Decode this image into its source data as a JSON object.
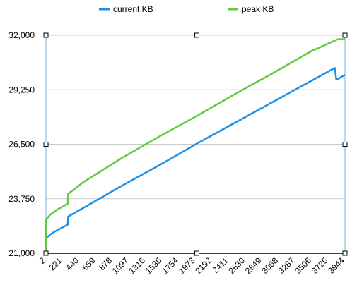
{
  "chart_data": {
    "type": "line",
    "title": "",
    "xlabel": "",
    "ylabel": "",
    "legend_placement": "top",
    "grid": {
      "horizontal": true,
      "vertical": false
    },
    "selected": true,
    "ylim": [
      21000,
      32000
    ],
    "xlim": [
      2,
      3944
    ],
    "y_ticks": [
      "21,000",
      "23,750",
      "26,500",
      "29,250",
      "32,000"
    ],
    "y_tick_values": [
      21000,
      23750,
      26500,
      29250,
      32000
    ],
    "x_ticks": [
      "2",
      "221",
      "440",
      "659",
      "878",
      "1097",
      "1316",
      "1535",
      "1754",
      "1973",
      "2192",
      "2411",
      "2630",
      "2849",
      "3068",
      "3287",
      "3506",
      "3725",
      "3944"
    ],
    "x_tick_values": [
      2,
      221,
      440,
      659,
      878,
      1097,
      1316,
      1535,
      1754,
      1973,
      2192,
      2411,
      2630,
      2849,
      3068,
      3287,
      3506,
      3725,
      3944
    ],
    "series": [
      {
        "name": "current KB",
        "color": "#1a90e8",
        "points": [
          [
            2,
            21100
          ],
          [
            5,
            21750
          ],
          [
            60,
            21950
          ],
          [
            120,
            22100
          ],
          [
            290,
            22450
          ],
          [
            295,
            22850
          ],
          [
            500,
            23300
          ],
          [
            1000,
            24400
          ],
          [
            1500,
            25450
          ],
          [
            2000,
            26550
          ],
          [
            2500,
            27600
          ],
          [
            3000,
            28650
          ],
          [
            3500,
            29700
          ],
          [
            3810,
            30350
          ],
          [
            3830,
            29750
          ],
          [
            3944,
            30000
          ]
        ]
      },
      {
        "name": "peak KB",
        "color": "#5fcc3a",
        "points": [
          [
            2,
            21100
          ],
          [
            5,
            22700
          ],
          [
            60,
            22950
          ],
          [
            150,
            23200
          ],
          [
            290,
            23500
          ],
          [
            295,
            24000
          ],
          [
            500,
            24600
          ],
          [
            1000,
            25800
          ],
          [
            1500,
            26900
          ],
          [
            2000,
            27950
          ],
          [
            2500,
            29050
          ],
          [
            3000,
            30100
          ],
          [
            3500,
            31200
          ],
          [
            3850,
            31800
          ],
          [
            3944,
            31800
          ]
        ]
      }
    ]
  }
}
